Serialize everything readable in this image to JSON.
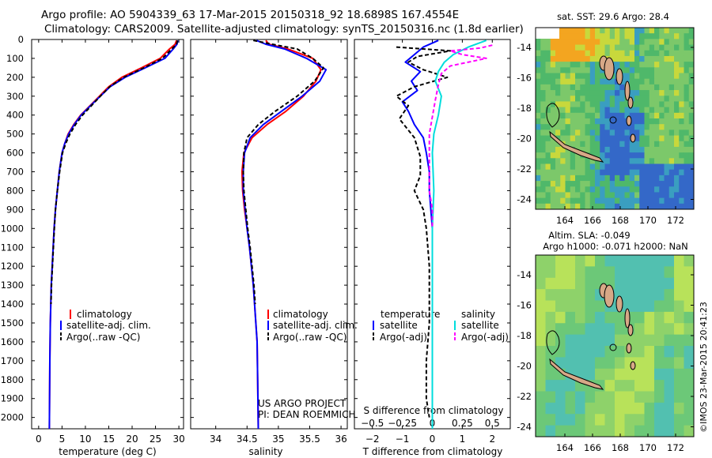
{
  "header": {
    "title_line1": "Argo profile: AO 5904339_63 17-Mar-2015 20150318_92 18.6898S 167.4554E",
    "title_line2": "Climatology: CARS2009. Satellite-adjusted climatology: synTS_20150316.nc (1.8d earlier)"
  },
  "colors": {
    "climatology": "#ff0000",
    "satellite": "#0000ff",
    "argo": "#000000",
    "sat_salinity": "#00dddd",
    "argo_salinity": "#ff00ff"
  },
  "depth_axis": {
    "ticks": [
      0,
      100,
      200,
      300,
      400,
      500,
      600,
      700,
      800,
      900,
      1000,
      1100,
      1200,
      1300,
      1400,
      1500,
      1600,
      1700,
      1800,
      1900,
      2000
    ],
    "range": [
      0,
      2060
    ]
  },
  "chart_data": [
    {
      "type": "line",
      "name": "temperature",
      "xlabel": "temperature (deg C)",
      "xlim": [
        -1.5,
        31
      ],
      "xticks": [
        0,
        5,
        10,
        15,
        20,
        25,
        30
      ],
      "xtick_labels": [
        "0",
        "5",
        "10",
        "15",
        "20",
        "25",
        "30"
      ],
      "ylim": [
        2060,
        0
      ],
      "legend": [
        "climatology",
        "satellite-adj. clim.",
        "Argo(..raw -QC)"
      ],
      "series": [
        {
          "name": "climatology",
          "x": [
            29.5,
            29.2,
            28.0,
            26.0,
            22.0,
            17.8,
            15.0,
            13.0,
            11.0,
            9.0,
            7.5,
            6.3,
            5.6,
            5.0,
            4.4,
            4.0,
            3.6,
            3.3,
            3.1,
            2.9,
            2.7,
            2.6,
            2.5,
            2.4,
            2.3
          ],
          "y": [
            5,
            25,
            50,
            100,
            150,
            200,
            250,
            300,
            350,
            400,
            450,
            500,
            550,
            600,
            700,
            800,
            900,
            1000,
            1100,
            1200,
            1300,
            1400,
            1500,
            1700,
            2060
          ]
        },
        {
          "name": "satellite",
          "x": [
            29.8,
            29.6,
            28.8,
            27.0,
            22.8,
            18.5,
            15.3,
            13.2,
            11.1,
            9.1,
            7.6,
            6.4,
            5.6,
            5.0,
            4.4,
            4.0,
            3.6,
            3.3,
            3.1,
            2.9,
            2.7,
            2.6,
            2.5,
            2.4,
            2.3
          ],
          "y": [
            5,
            25,
            50,
            100,
            150,
            200,
            250,
            300,
            350,
            400,
            450,
            500,
            550,
            600,
            700,
            800,
            900,
            1000,
            1100,
            1200,
            1300,
            1400,
            1500,
            1700,
            2060
          ]
        },
        {
          "name": "argo",
          "x": [
            29.7,
            29.5,
            28.5,
            26.5,
            22.5,
            18.2,
            15.2,
            13.2,
            11.3,
            9.4,
            7.9,
            6.7,
            5.8,
            5.1,
            4.5,
            4.0,
            3.6,
            3.35,
            3.15,
            2.95,
            2.75,
            2.65
          ],
          "y": [
            5,
            25,
            50,
            100,
            150,
            200,
            250,
            300,
            350,
            400,
            450,
            500,
            550,
            600,
            700,
            800,
            900,
            1000,
            1100,
            1200,
            1300,
            1400
          ]
        }
      ]
    },
    {
      "type": "line",
      "name": "salinity",
      "xlabel": "salinity",
      "xlim": [
        33.6,
        36.1
      ],
      "xticks": [
        34,
        34.5,
        35,
        35.5,
        36
      ],
      "xtick_labels": [
        "34",
        "34.5",
        "35",
        "35.5",
        "36"
      ],
      "ylim": [
        2060,
        0
      ],
      "legend": [
        "climatology",
        "satellite-adj. clim.",
        "Argo(..raw -QC)"
      ],
      "series": [
        {
          "name": "climatology",
          "x": [
            34.8,
            34.85,
            35.15,
            35.55,
            35.68,
            35.6,
            35.4,
            35.12,
            34.82,
            34.58,
            34.45,
            34.42,
            34.43,
            34.46,
            34.5,
            34.54,
            34.57,
            34.6,
            34.62,
            34.64,
            34.66,
            34.67,
            34.68
          ],
          "y": [
            5,
            25,
            50,
            100,
            160,
            220,
            300,
            380,
            450,
            520,
            600,
            700,
            800,
            900,
            1000,
            1100,
            1200,
            1300,
            1400,
            1500,
            1600,
            1800,
            2060
          ]
        },
        {
          "name": "satellite",
          "x": [
            34.65,
            34.8,
            35.1,
            35.45,
            35.76,
            35.66,
            35.38,
            35.05,
            34.76,
            34.55,
            34.46,
            34.44,
            34.44,
            34.47,
            34.5,
            34.54,
            34.57,
            34.6,
            34.62,
            34.64,
            34.66,
            34.67,
            34.68
          ],
          "y": [
            5,
            25,
            50,
            100,
            160,
            220,
            300,
            380,
            450,
            520,
            600,
            700,
            800,
            900,
            1000,
            1100,
            1200,
            1300,
            1400,
            1500,
            1600,
            1800,
            2060
          ]
        },
        {
          "name": "argo",
          "x": [
            34.6,
            34.9,
            35.3,
            35.55,
            35.72,
            35.58,
            35.3,
            34.95,
            34.68,
            34.5,
            34.45,
            34.44,
            34.45,
            34.48,
            34.51,
            34.55,
            34.58,
            34.61,
            34.63
          ],
          "y": [
            5,
            25,
            50,
            100,
            150,
            220,
            300,
            380,
            450,
            520,
            600,
            700,
            800,
            900,
            1000,
            1100,
            1200,
            1300,
            1400
          ]
        }
      ]
    },
    {
      "type": "line",
      "name": "difference",
      "xlabel": "T difference from climatology",
      "xlabel_top": "S difference from climatology",
      "xlim": [
        -2.6,
        2.6
      ],
      "xticks": [
        -2,
        -1,
        0,
        1,
        2
      ],
      "xtick_labels": [
        "−2",
        "−1",
        "0",
        "1",
        "2"
      ],
      "s_ticks": [
        -0.5,
        -0.25,
        0,
        0.25,
        0.5
      ],
      "s_tick_labels": [
        "−0.5",
        "−0.25",
        "0",
        "0.25",
        "0.5"
      ],
      "s_scale": 4,
      "ylim": [
        2060,
        0
      ],
      "legend_groups": [
        {
          "title": "temperature",
          "items": [
            "satellite",
            "Argo(-adj)"
          ]
        },
        {
          "title": "salinity",
          "items": [
            "satellite",
            "Argo(-adj)"
          ]
        }
      ],
      "series": [
        {
          "name": "T satellite",
          "x": [
            0.2,
            -0.3,
            -0.6,
            -0.9,
            -0.4,
            -0.7,
            -0.5,
            -1.0,
            -0.8,
            -0.6,
            -0.3,
            -0.2,
            -0.1,
            -0.1,
            -0.05,
            0,
            0,
            0,
            0,
            0
          ],
          "y": [
            5,
            40,
            80,
            120,
            170,
            220,
            270,
            330,
            380,
            450,
            520,
            600,
            700,
            800,
            900,
            1000,
            1200,
            1500,
            1800,
            2060
          ]
        },
        {
          "name": "T argo",
          "x": [
            -1.2,
            0.6,
            -0.5,
            -0.8,
            -0.3,
            0.5,
            -0.6,
            -1.2,
            -0.8,
            -1.1,
            -0.6,
            -0.4,
            -0.4,
            -0.6,
            -0.3,
            -0.2,
            -0.1,
            -0.1,
            -0.2,
            -0.2,
            -0.1
          ],
          "y": [
            40,
            60,
            90,
            120,
            160,
            200,
            250,
            300,
            350,
            420,
            520,
            620,
            720,
            800,
            900,
            1000,
            1200,
            1500,
            1700,
            1900,
            2000
          ]
        },
        {
          "name": "S satellite",
          "x": [
            1.8,
            1.2,
            0.7,
            0.4,
            0.2,
            0.1,
            0.3,
            0.2,
            0.05,
            0,
            0.05,
            0,
            0,
            0
          ],
          "y": [
            5,
            40,
            80,
            120,
            170,
            220,
            300,
            400,
            500,
            600,
            800,
            1000,
            1500,
            2060
          ]
        },
        {
          "name": "S argo",
          "x": [
            2.0,
            1.6,
            0.6,
            1.0,
            1.8,
            0.6,
            0.3,
            0.2,
            0.1,
            -0.1,
            -0.1,
            -0.1,
            0,
            0
          ],
          "y": [
            30,
            45,
            60,
            80,
            100,
            140,
            180,
            240,
            320,
            500,
            700,
            800,
            900,
            1000
          ]
        }
      ]
    }
  ],
  "legends": {
    "clim_label": "climatology",
    "sat_label": "satellite-adj. clim.",
    "argo_label": "Argo(..raw -QC)",
    "diff_temp_title": "temperature",
    "diff_sal_title": "salinity",
    "diff_sat_label": "satellite",
    "diff_argo_label": "Argo(-adj)"
  },
  "project": {
    "line1": "US ARGO PROJECT",
    "line2": "PI: DEAN ROEMMICH"
  },
  "maps": {
    "sst_title": "sat. SST: 29.6  Argo: 28.4",
    "sla_title1": "Altim. SLA: -0.049",
    "sla_title2": "Argo h1000: -0.071  h2000: NaN",
    "lat_ticks": [
      "-14",
      "-16",
      "-18",
      "-20",
      "-22",
      "-24"
    ],
    "lon_ticks": [
      "164",
      "166",
      "168",
      "170",
      "172"
    ],
    "credit": "©IMOS 23-Mar-2015 20:41:23"
  }
}
